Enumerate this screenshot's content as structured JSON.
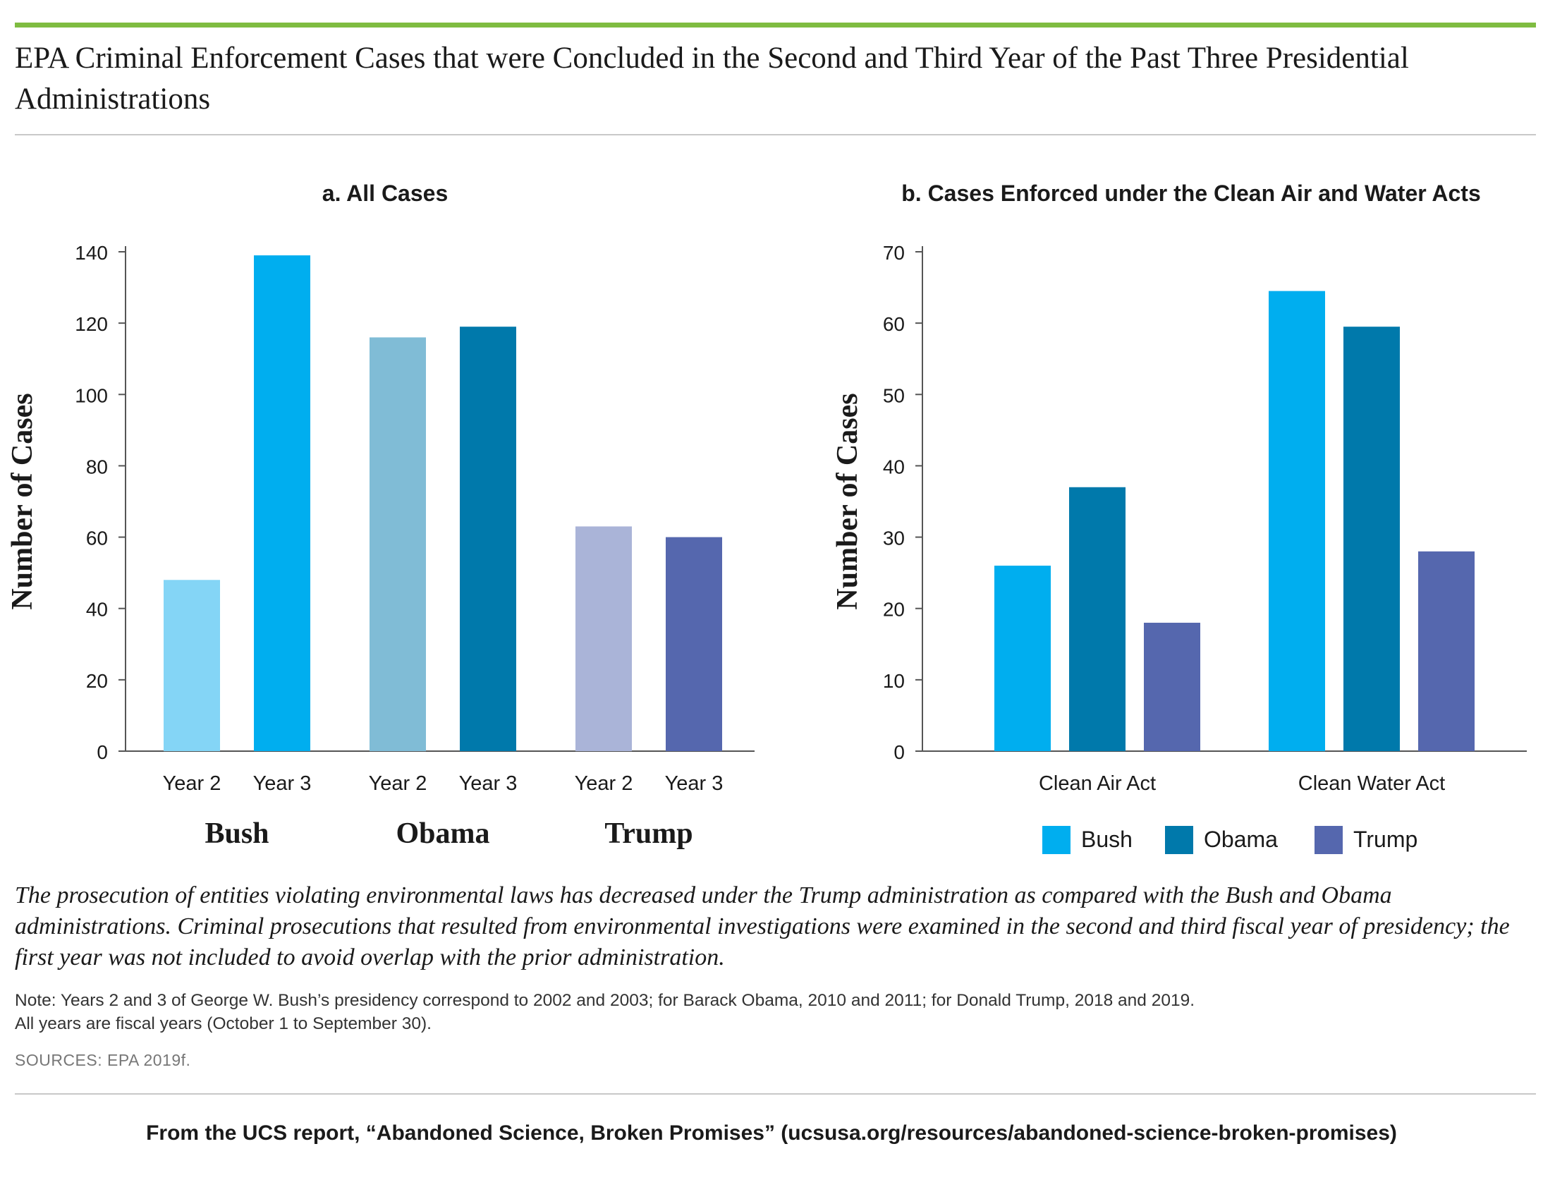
{
  "title": "EPA Criminal Enforcement Cases that were Concluded in the Second and Third Year of the Past Three Presidential Administrations",
  "colors": {
    "bush_year2": "#84d5f6",
    "bush": "#00aeef",
    "obama_year2": "#80bcd6",
    "obama": "#0079ab",
    "trump_year2": "#aab4d8",
    "trump": "#5567ae",
    "accent_bar": "#7fbc41"
  },
  "chart_data": [
    {
      "type": "bar",
      "title": "a. All Cases",
      "ylabel": "Number of Cases",
      "ylim": [
        0,
        140
      ],
      "yticks": [
        0,
        20,
        40,
        60,
        80,
        100,
        120,
        140
      ],
      "groups": [
        {
          "name": "Bush",
          "categories": [
            "Year 2",
            "Year 3"
          ],
          "values": [
            48,
            139
          ],
          "colors": [
            "#84d5f6",
            "#00aeef"
          ]
        },
        {
          "name": "Obama",
          "categories": [
            "Year 2",
            "Year 3"
          ],
          "values": [
            116,
            119
          ],
          "colors": [
            "#80bcd6",
            "#0079ab"
          ]
        },
        {
          "name": "Trump",
          "categories": [
            "Year 2",
            "Year 3"
          ],
          "values": [
            63,
            60
          ],
          "colors": [
            "#aab4d8",
            "#5567ae"
          ]
        }
      ]
    },
    {
      "type": "bar",
      "title": "b. Cases Enforced under the Clean Air and Water Acts",
      "ylabel": "Number of Cases",
      "ylim": [
        0,
        70
      ],
      "yticks": [
        0,
        10,
        20,
        30,
        40,
        50,
        60,
        70
      ],
      "categories": [
        "Clean Air Act",
        "Clean Water Act"
      ],
      "series": [
        {
          "name": "Bush",
          "values": [
            26,
            64.5
          ],
          "color": "#00aeef"
        },
        {
          "name": "Obama",
          "values": [
            37,
            59.5
          ],
          "color": "#0079ab"
        },
        {
          "name": "Trump",
          "values": [
            18,
            28
          ],
          "color": "#5567ae"
        }
      ],
      "legend": "bottom"
    }
  ],
  "caption": "The prosecution of entities violating environmental laws has decreased under the Trump administration as compared with the Bush and Obama administrations. Criminal prosecutions that resulted from environmental investigations were examined in the second and third fiscal year of presidency; the first year was not included to avoid overlap with the prior administration.",
  "note_line1": "Note: Years 2 and 3 of George W. Bush’s presidency correspond to 2002 and 2003; for Barack Obama, 2010 and 2011; for Donald Trump, 2018 and 2019.",
  "note_line2": "All years are fiscal years (October 1 to September 30).",
  "sources": "SOURCES: EPA 2019f.",
  "footer": "From the UCS report, “Abandoned Science, Broken Promises” (ucsusa.org/resources/abandoned-science-broken-promises)"
}
